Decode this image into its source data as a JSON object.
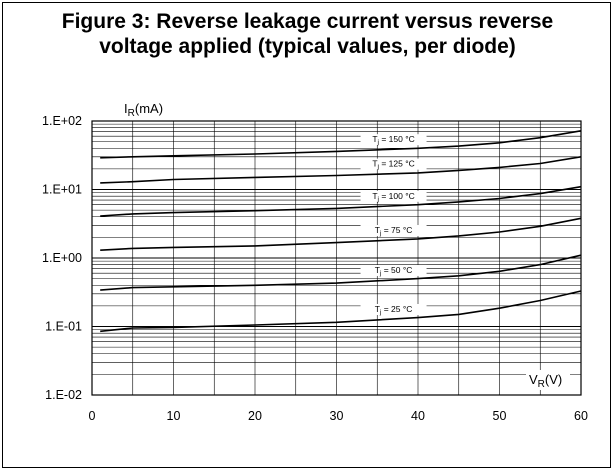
{
  "chart_data": {
    "type": "line",
    "title_line1": "Figure 3: Reverse leakage current versus reverse",
    "title_line2": "voltage applied (typical values, per diode)",
    "ylabel_main": "I",
    "ylabel_sub": "R",
    "ylabel_unit": "(mA)",
    "xlabel_main": "V",
    "xlabel_sub": "R",
    "xlabel_unit": "(V)",
    "y_scale": "log",
    "ylim": [
      0.01,
      100
    ],
    "xlim": [
      0,
      60
    ],
    "grid": true,
    "x_ticks": [
      0,
      10,
      20,
      30,
      40,
      50,
      60
    ],
    "x_tick_labels": [
      "0",
      "10",
      "20",
      "30",
      "40",
      "50",
      "60"
    ],
    "y_ticks": [
      0.1,
      1,
      10,
      100,
      0.01
    ],
    "y_tick_labels": [
      "1.E-01",
      "1.E+00",
      "1.E+01",
      "1.E+02",
      "1.E-02"
    ],
    "series": [
      {
        "label_main": "T",
        "label_sub": "j",
        "label_rest": " = 150 °C",
        "label_x": 37,
        "x": [
          1,
          5,
          10,
          20,
          30,
          40,
          45,
          50,
          55,
          60
        ],
        "values": [
          29,
          30,
          31,
          33,
          36,
          40,
          43,
          48,
          57,
          72
        ]
      },
      {
        "label_main": "T",
        "label_sub": "j",
        "label_rest": " = 125 °C",
        "label_x": 37,
        "x": [
          1,
          5,
          10,
          20,
          30,
          40,
          45,
          50,
          55,
          60
        ],
        "values": [
          12.5,
          13,
          14,
          15,
          16,
          17.5,
          19,
          21,
          24,
          30
        ]
      },
      {
        "label_main": "T",
        "label_sub": "j",
        "label_rest": " = 100 °C",
        "label_x": 37,
        "x": [
          1,
          5,
          10,
          20,
          30,
          40,
          45,
          50,
          55,
          60
        ],
        "values": [
          4.1,
          4.4,
          4.6,
          4.9,
          5.3,
          6,
          6.6,
          7.4,
          8.7,
          11
        ]
      },
      {
        "label_main": "T",
        "label_sub": "j",
        "label_rest": " = 75 °C",
        "label_x": 37,
        "x": [
          1,
          5,
          10,
          20,
          30,
          40,
          45,
          50,
          55,
          60
        ],
        "values": [
          1.3,
          1.38,
          1.43,
          1.5,
          1.68,
          1.9,
          2.1,
          2.4,
          2.9,
          3.8
        ]
      },
      {
        "label_main": "T",
        "label_sub": "j",
        "label_rest": " = 50 °C",
        "label_x": 37,
        "x": [
          1,
          5,
          10,
          20,
          30,
          40,
          45,
          50,
          55,
          60
        ],
        "values": [
          0.34,
          0.37,
          0.38,
          0.4,
          0.43,
          0.5,
          0.55,
          0.64,
          0.8,
          1.1
        ]
      },
      {
        "label_main": "T",
        "label_sub": "j",
        "label_rest": " = 25 °C",
        "label_x": 37,
        "x": [
          1,
          5,
          10,
          20,
          30,
          40,
          45,
          50,
          55,
          60
        ],
        "values": [
          0.085,
          0.095,
          0.097,
          0.105,
          0.115,
          0.135,
          0.15,
          0.185,
          0.24,
          0.33
        ]
      }
    ]
  }
}
